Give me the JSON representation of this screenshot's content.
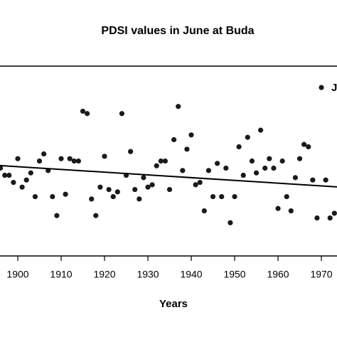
{
  "chart_data": {
    "type": "scatter",
    "title": "PDSI values in June at Buda",
    "x_label": "Years",
    "annotation": "J",
    "color": "#1a1a1a",
    "x": [
      1896,
      1897,
      1898,
      1899,
      1900,
      1901,
      1902,
      1903,
      1904,
      1905,
      1906,
      1907,
      1908,
      1909,
      1910,
      1911,
      1912,
      1913,
      1914,
      1915,
      1916,
      1917,
      1918,
      1919,
      1920,
      1921,
      1922,
      1923,
      1924,
      1925,
      1926,
      1927,
      1928,
      1929,
      1930,
      1931,
      1932,
      1933,
      1934,
      1935,
      1936,
      1937,
      1938,
      1939,
      1940,
      1941,
      1942,
      1943,
      1944,
      1945,
      1946,
      1947,
      1948,
      1949,
      1950,
      1951,
      1952,
      1953,
      1954,
      1955,
      1956,
      1957,
      1958,
      1959,
      1960,
      1961,
      1962,
      1963,
      1964,
      1965,
      1966,
      1967,
      1968,
      1969,
      1970,
      1971,
      1972,
      1973
    ],
    "values": [
      -0.3,
      -0.6,
      -0.6,
      -0.9,
      0.1,
      -1.1,
      -0.8,
      -0.5,
      -1.5,
      0.0,
      0.3,
      -0.4,
      -1.5,
      -2.3,
      0.1,
      -1.4,
      0.1,
      0.0,
      0.0,
      2.1,
      2.0,
      -1.6,
      -2.3,
      -1.1,
      0.2,
      -1.2,
      -1.5,
      -1.3,
      2.0,
      -0.6,
      0.4,
      -1.2,
      -1.6,
      -0.7,
      -1.1,
      -1.0,
      -0.2,
      0.0,
      0.0,
      -1.2,
      0.9,
      2.3,
      -0.4,
      0.5,
      1.1,
      -1.0,
      -0.9,
      -2.1,
      -0.4,
      -1.5,
      -0.1,
      -1.5,
      -0.3,
      -2.6,
      -1.5,
      0.6,
      -0.6,
      1.0,
      0.0,
      -0.5,
      1.3,
      -0.3,
      0.1,
      -0.3,
      -2.0,
      0.0,
      -1.5,
      -2.1,
      -0.7,
      0.1,
      0.7,
      0.6,
      -0.8,
      -2.4,
      3.1,
      -0.8,
      -2.4,
      -2.2
    ],
    "trend": {
      "x": [
        1895.9,
        1973.6
      ],
      "y": [
        -0.19,
        -1.09
      ]
    },
    "xlim": [
      1895.9,
      1973.6
    ],
    "ylim": [
      -4,
      4
    ],
    "xticks": [
      1900,
      1910,
      1920,
      1930,
      1940,
      1950,
      1960,
      1970
    ]
  }
}
